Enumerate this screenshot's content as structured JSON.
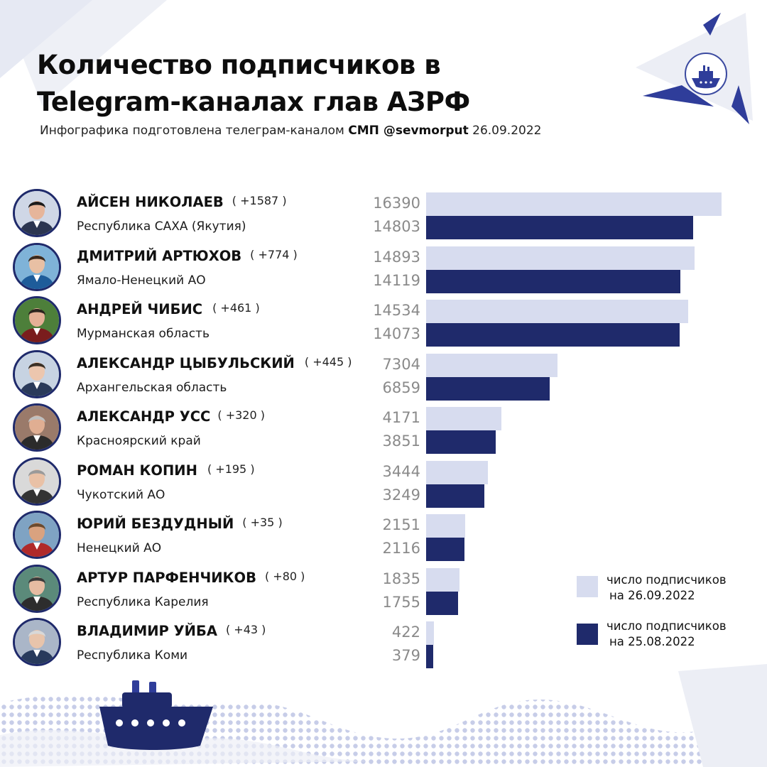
{
  "header": {
    "title_line1": "Количество подписчиков в",
    "title_line2": "Telegram-каналах глав АЗРФ",
    "subtitle_prefix": "Инфографика подготовлена телеграм-каналом",
    "subtitle_channel": "СМП @sevmorput",
    "subtitle_date": "26.09.2022"
  },
  "colors": {
    "current": "#d7dcef",
    "previous": "#1f2a6b",
    "accent": "#2f3d9a",
    "dots": "#c7cde8"
  },
  "legend": {
    "current_line1": "число подписчиков",
    "current_line2": "на 26.09.2022",
    "previous_line1": "число подписчиков",
    "previous_line2": "на 25.08.2022"
  },
  "rows": [
    {
      "name": "АЙСЕН НИКОЛАЕВ",
      "delta": "( +1587 )",
      "region": "Республика САХА (Якутия)",
      "current": "16390",
      "previous": "14803"
    },
    {
      "name": "ДМИТРИЙ АРТЮХОВ",
      "delta": "( +774 )",
      "region": "Ямало-Ненецкий АО",
      "current": "14893",
      "previous": "14119"
    },
    {
      "name": "АНДРЕЙ ЧИБИС",
      "delta": "( +461 )",
      "region": "Мурманская область",
      "current": "14534",
      "previous": "14073"
    },
    {
      "name": "АЛЕКСАНДР ЦЫБУЛЬСКИЙ",
      "delta": "( +445 )",
      "region": "Архангельская область",
      "current": "7304",
      "previous": "6859"
    },
    {
      "name": "АЛЕКСАНДР УСС",
      "delta": "( +320 )",
      "region": "Красноярский край",
      "current": "4171",
      "previous": "3851"
    },
    {
      "name": "РОМАН КОПИН",
      "delta": "( +195 )",
      "region": "Чукотский АО",
      "current": "3444",
      "previous": "3249"
    },
    {
      "name": "ЮРИЙ БЕЗДУДНЫЙ",
      "delta": "( +35 )",
      "region": "Ненецкий АО",
      "current": "2151",
      "previous": "2116"
    },
    {
      "name": "АРТУР ПАРФЕНЧИКОВ",
      "delta": "( +80 )",
      "region": "Республика Карелия",
      "current": "1835",
      "previous": "1755"
    },
    {
      "name": "ВЛАДИМИР УЙБА",
      "delta": "( +43 )",
      "region": "Республика Коми",
      "current": "422",
      "previous": "379"
    }
  ],
  "chart_data": {
    "type": "bar",
    "orientation": "horizontal",
    "categories": [
      "АЙСЕН НИКОЛАЕВ",
      "ДМИТРИЙ АРТЮХОВ",
      "АНДРЕЙ ЧИБИС",
      "АЛЕКСАНДР ЦЫБУЛЬСКИЙ",
      "АЛЕКСАНДР УСС",
      "РОМАН КОПИН",
      "ЮРИЙ БЕЗДУДНЫЙ",
      "АРТУР ПАРФЕНЧИКОВ",
      "ВЛАДИМИР УЙБА"
    ],
    "series": [
      {
        "name": "число подписчиков на 26.09.2022",
        "values": [
          16390,
          14893,
          14534,
          7304,
          4171,
          3444,
          2151,
          1835,
          422
        ]
      },
      {
        "name": "число подписчиков на 25.08.2022",
        "values": [
          14803,
          14119,
          14073,
          6859,
          3851,
          3249,
          2116,
          1755,
          379
        ]
      }
    ],
    "xlim": [
      0,
      16390
    ],
    "legend_position": "bottom-right",
    "grid": false
  }
}
